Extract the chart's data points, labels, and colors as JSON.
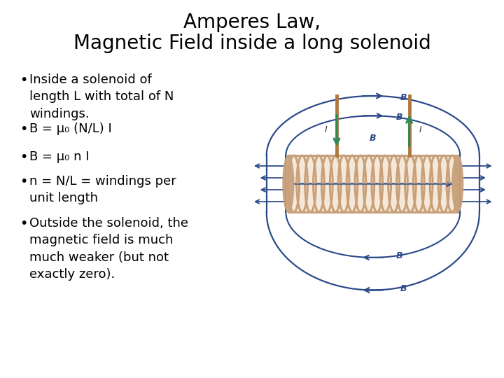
{
  "title_line1": "Amperes Law,",
  "title_line2": "Magnetic Field inside a long solenoid",
  "title_fontsize": 20,
  "bg_color": "#ffffff",
  "bullet_items": [
    "Inside a solenoid of\nlength L with total of N\nwindings.",
    "B = μ₀ (N/L) I",
    "B = μ₀ n I",
    "n = N/L = windings per\nunit length",
    "Outside the solenoid, the\nmagnetic field is much\nmuch weaker (but not\nexactly zero)."
  ],
  "bullet_fontsize": 13,
  "sol_color": "#c8a07a",
  "fl_color": "#2b4a8a",
  "arr_color": "#2e8b57",
  "lead_color": "#b07840"
}
